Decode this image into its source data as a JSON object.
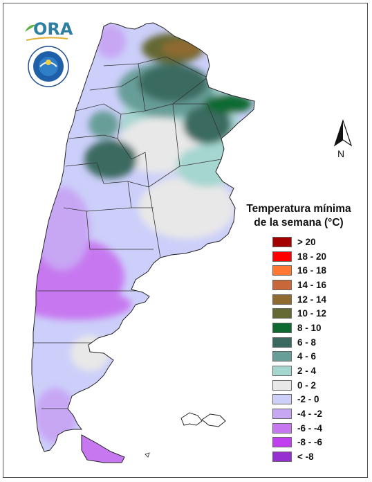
{
  "logos": {
    "ora_text": "ORA",
    "smn_seal_text": "SERVICIO METEOROLÓGICO NACIONAL · ARGENTINA"
  },
  "north_arrow": {
    "label": "N"
  },
  "legend": {
    "title_line1": "Temperatura mínima",
    "title_line2": "de la semana (°C)",
    "items": [
      {
        "label": "> 20",
        "color": "#a50000"
      },
      {
        "label": "18 - 20",
        "color": "#ff0000"
      },
      {
        "label": "16 - 18",
        "color": "#ff7733"
      },
      {
        "label": "14 - 16",
        "color": "#c8683a"
      },
      {
        "label": "12 - 14",
        "color": "#8f6a30"
      },
      {
        "label": "10 - 12",
        "color": "#646832"
      },
      {
        "label": "8 - 10",
        "color": "#0e6a30"
      },
      {
        "label": "6 - 8",
        "color": "#3a6a60"
      },
      {
        "label": "4 - 6",
        "color": "#689e98"
      },
      {
        "label": "2 - 4",
        "color": "#a6d6d0"
      },
      {
        "label": "0 - 2",
        "color": "#e8e8e8"
      },
      {
        "label": "-2 - 0",
        "color": "#cccffa"
      },
      {
        "label": "-4 - -2",
        "color": "#c7a6f4"
      },
      {
        "label": "-6 - -4",
        "color": "#c778f0"
      },
      {
        "label": "-8 - -6",
        "color": "#c040f0"
      },
      {
        "label": "< -8",
        "color": "#9630d0"
      }
    ]
  }
}
